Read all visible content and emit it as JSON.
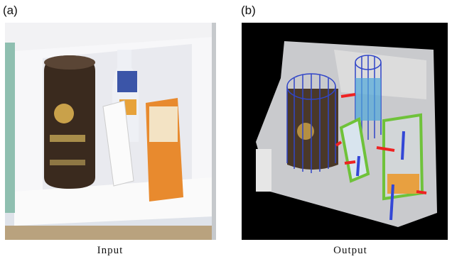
{
  "panels": [
    {
      "label": "(a)",
      "caption": "Input"
    },
    {
      "label": "(b)",
      "caption": "Output"
    }
  ]
}
